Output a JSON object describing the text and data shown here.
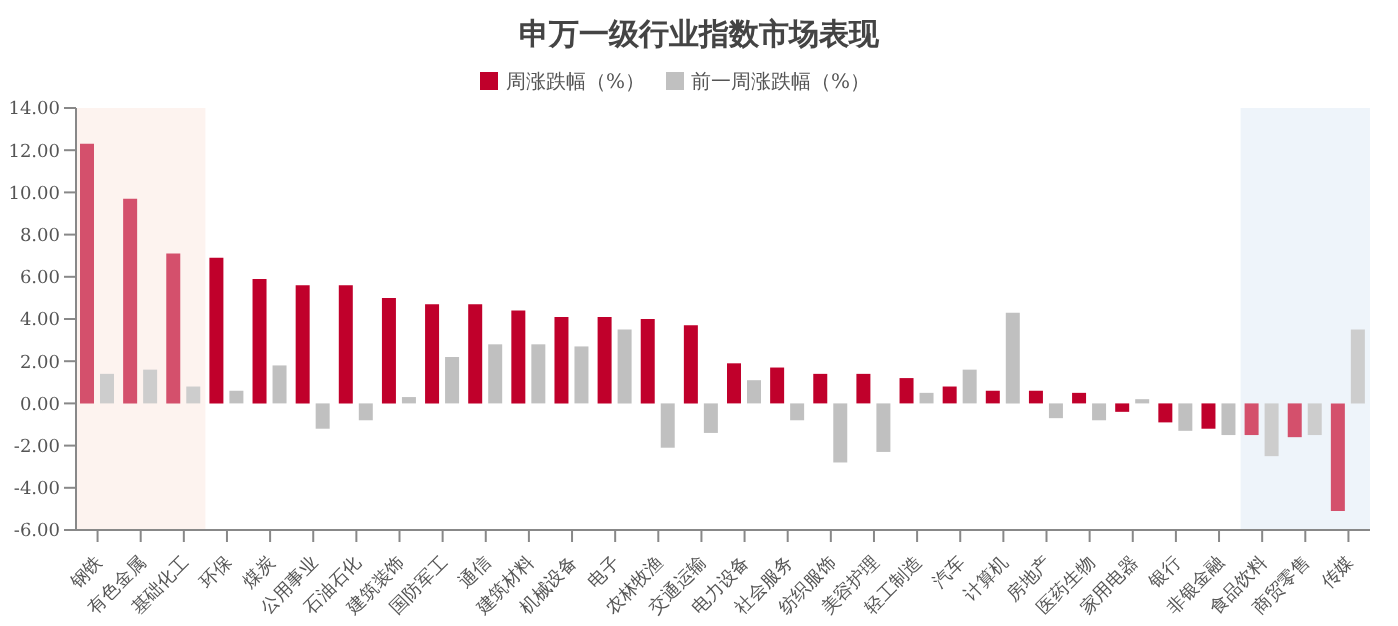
{
  "chart_data": {
    "type": "bar",
    "title": "申万一级行业指数市场表现",
    "categories": [
      "钢铁",
      "有色金属",
      "基础化工",
      "环保",
      "煤炭",
      "公用事业",
      "石油石化",
      "建筑装饰",
      "国防军工",
      "通信",
      "建筑材料",
      "机械设备",
      "电子",
      "农林牧渔",
      "交通运输",
      "电力设备",
      "社会服务",
      "纺织服饰",
      "美容护理",
      "轻工制造",
      "汽车",
      "计算机",
      "房地产",
      "医药生物",
      "家用电器",
      "银行",
      "非银金融",
      "食品饮料",
      "商贸零售",
      "传媒"
    ],
    "series": [
      {
        "name": "周涨跌幅（%）",
        "color": "#c0002b",
        "colors": [
          "#d4506c",
          "#d4506c",
          "#d4506c",
          "#c0002b",
          "#c0002b",
          "#c0002b",
          "#c0002b",
          "#c0002b",
          "#c0002b",
          "#c0002b",
          "#c0002b",
          "#c0002b",
          "#c0002b",
          "#c0002b",
          "#c0002b",
          "#c0002b",
          "#c0002b",
          "#c0002b",
          "#c0002b",
          "#c0002b",
          "#c0002b",
          "#c0002b",
          "#c0002b",
          "#c0002b",
          "#c0002b",
          "#c0002b",
          "#c0002b",
          "#d4506c",
          "#d4506c",
          "#d4506c"
        ],
        "values": [
          12.3,
          9.7,
          7.1,
          6.9,
          5.9,
          5.6,
          5.6,
          5.0,
          4.7,
          4.7,
          4.4,
          4.1,
          4.1,
          4.0,
          3.7,
          1.9,
          1.7,
          1.4,
          1.4,
          1.2,
          0.8,
          0.6,
          0.6,
          0.5,
          -0.4,
          -0.9,
          -1.2,
          -1.5,
          -1.6,
          -5.1
        ]
      },
      {
        "name": "前一周涨跌幅（%）",
        "color": "#c0c0c0",
        "colors": [
          "#cdcdcd",
          "#cdcdcd",
          "#cdcdcd",
          "#c0c0c0",
          "#c0c0c0",
          "#c0c0c0",
          "#c0c0c0",
          "#c0c0c0",
          "#c0c0c0",
          "#c0c0c0",
          "#c0c0c0",
          "#c0c0c0",
          "#c0c0c0",
          "#c0c0c0",
          "#c0c0c0",
          "#c0c0c0",
          "#c0c0c0",
          "#c0c0c0",
          "#c0c0c0",
          "#c0c0c0",
          "#c0c0c0",
          "#c0c0c0",
          "#c0c0c0",
          "#c0c0c0",
          "#c0c0c0",
          "#c0c0c0",
          "#c0c0c0",
          "#cdcdcd",
          "#cdcdcd",
          "#cdcdcd"
        ],
        "values": [
          1.4,
          1.6,
          0.8,
          0.6,
          1.8,
          -1.2,
          -0.8,
          0.3,
          2.2,
          2.8,
          2.8,
          2.7,
          3.5,
          -2.1,
          -1.4,
          1.1,
          -0.8,
          -2.8,
          -2.3,
          0.5,
          1.6,
          4.3,
          -0.7,
          -0.8,
          0.2,
          -1.3,
          -1.5,
          -2.5,
          -1.5,
          3.5
        ]
      }
    ],
    "ylim": [
      -6,
      14
    ],
    "yticks": [
      {
        "value": -6,
        "label": "-6.00"
      },
      {
        "value": -4,
        "label": "-4.00"
      },
      {
        "value": -2,
        "label": "-2.00"
      },
      {
        "value": 0,
        "label": "0.00"
      },
      {
        "value": 2,
        "label": "2.00"
      },
      {
        "value": 4,
        "label": "4.00"
      },
      {
        "value": 6,
        "label": "6.00"
      },
      {
        "value": 8,
        "label": "8.00"
      },
      {
        "value": 10,
        "label": "10.00"
      },
      {
        "value": 12,
        "label": "12.00"
      },
      {
        "value": 14,
        "label": "14.00"
      }
    ],
    "bands": [
      {
        "axis": "x",
        "from": "钢铁",
        "to": "基础化工",
        "color": "#fdf3ef"
      },
      {
        "axis": "x",
        "from": "食品饮料",
        "to": "传媒",
        "color": "#eef4fa"
      }
    ],
    "legend": "top"
  }
}
